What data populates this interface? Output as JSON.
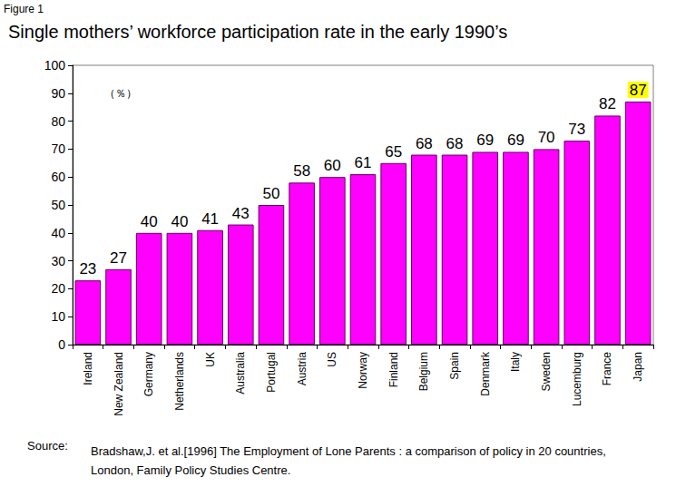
{
  "chart_data": {
    "type": "bar",
    "figure_label": "Figure 1",
    "title": "Single mothers’ workforce participation rate in the early 1990’s",
    "unit_label": "（％）",
    "source_label": "Source:",
    "source": [
      "Bradshaw,J. et al.[1996] The Employment of Lone Parents : a comparison of policy in 20 countries,",
      "London, Family Policy Studies Centre."
    ],
    "categories": [
      "Ireland",
      "New Zealand",
      "Germany",
      "Netherlands",
      "UK",
      "Australia",
      "Portugal",
      "Austria",
      "US",
      "Norway",
      "Finland",
      "Belgium",
      "Spain",
      "Denmark",
      "Italy",
      "Sweden",
      "Lucemburg",
      "France",
      "Japan"
    ],
    "values": [
      23,
      27,
      40,
      40,
      41,
      43,
      50,
      58,
      60,
      61,
      65,
      68,
      68,
      69,
      69,
      70,
      73,
      82,
      87
    ],
    "color": "#ff00ff",
    "ylim": [
      0,
      100
    ],
    "yticks": [
      0,
      10,
      20,
      30,
      40,
      50,
      60,
      70,
      80,
      90,
      100
    ],
    "grid": false,
    "data_labels": true
  }
}
